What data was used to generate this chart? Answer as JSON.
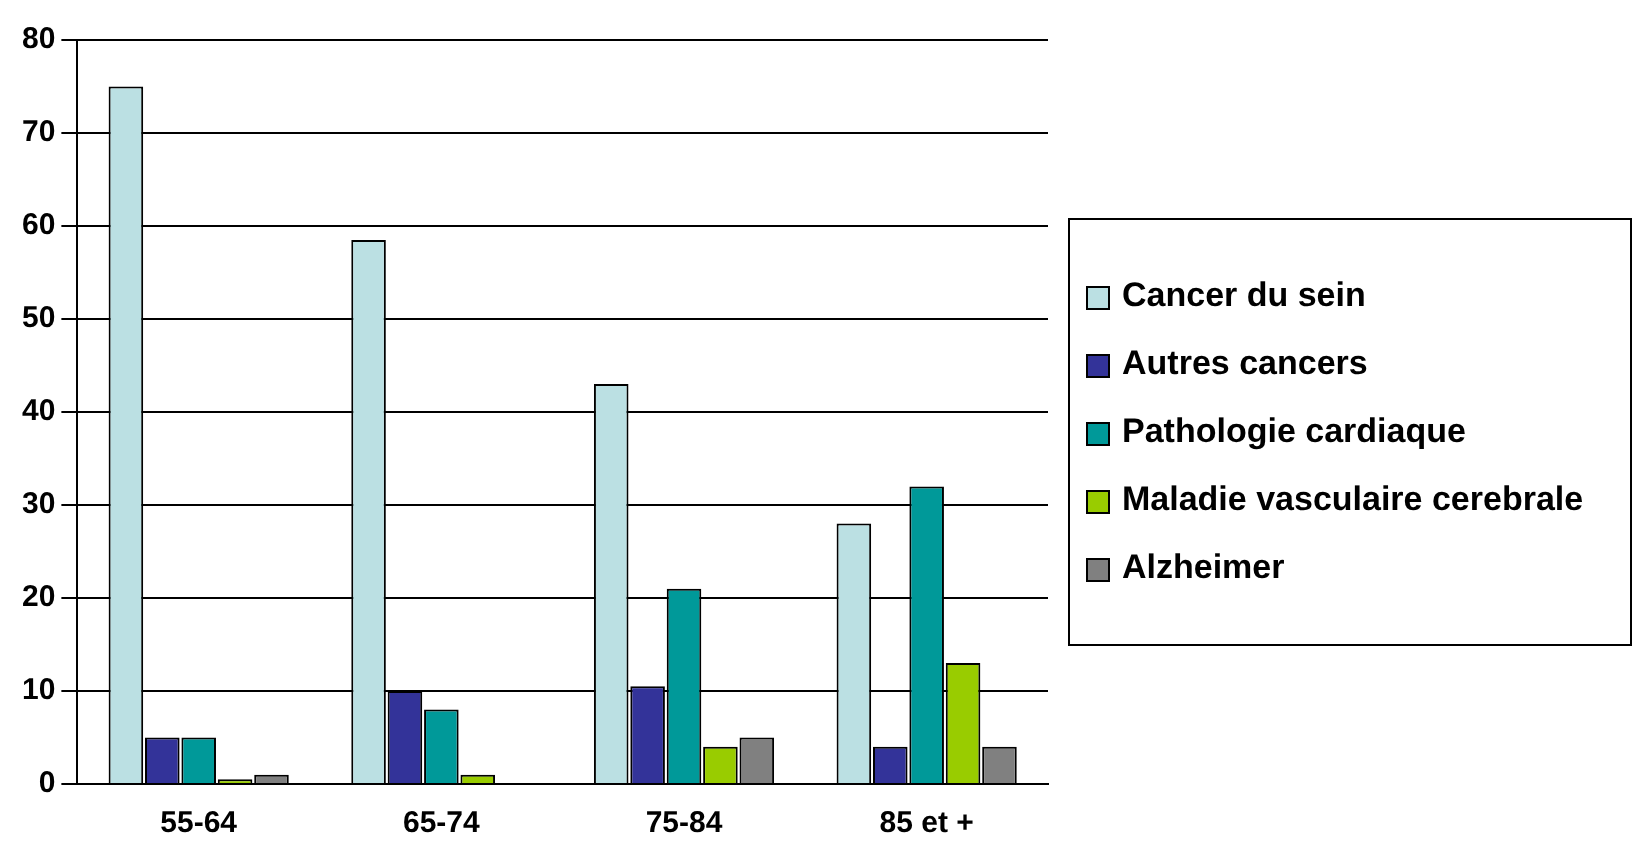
{
  "chart_data": {
    "type": "bar",
    "categories": [
      "55-64",
      "65-74",
      "75-84",
      "85 et +"
    ],
    "series": [
      {
        "name": "Cancer du sein",
        "color": "#bbe0e3",
        "values": [
          75,
          58.5,
          43,
          28
        ]
      },
      {
        "name": "Autres cancers",
        "color": "#333399",
        "values": [
          5,
          10,
          10.5,
          4
        ]
      },
      {
        "name": "Pathologie cardiaque",
        "color": "#009999",
        "values": [
          5,
          8,
          21,
          32
        ]
      },
      {
        "name": "Maladie vasculaire cerebrale",
        "color": "#99cc00",
        "values": [
          0.5,
          1,
          4,
          13
        ]
      },
      {
        "name": "Alzheimer",
        "color": "#808080",
        "values": [
          1,
          0,
          5,
          4
        ]
      }
    ],
    "ylim": [
      0,
      80
    ],
    "yticks": [
      0,
      10,
      20,
      30,
      40,
      50,
      60,
      70,
      80
    ],
    "grid": "y",
    "legend": "right"
  }
}
